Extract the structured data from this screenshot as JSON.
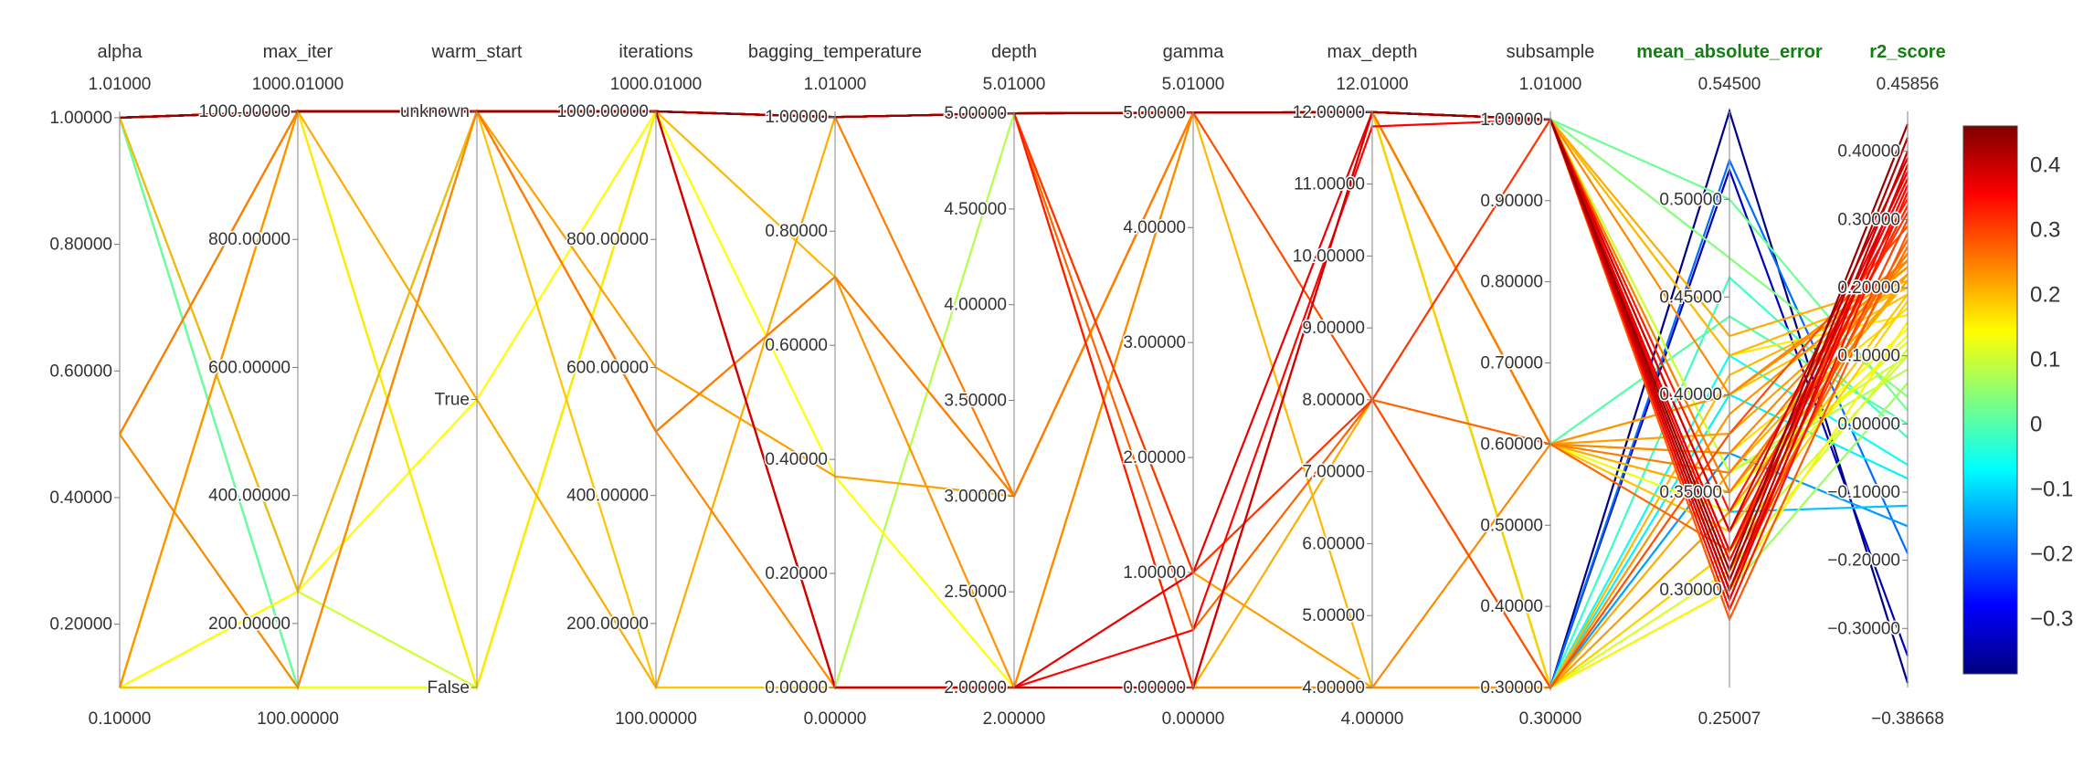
{
  "chart_data": {
    "type": "parallel_coordinates",
    "color_dimension": "r2_score",
    "colorscale": [
      "#00007f",
      "#0000ff",
      "#007fff",
      "#00ffff",
      "#7fff7f",
      "#ffff00",
      "#ff7f00",
      "#ff0000",
      "#7f0000"
    ],
    "colorbar": {
      "min": -0.38668,
      "max": 0.45856,
      "tick_values": [
        0.4,
        0.3,
        0.2,
        0.1,
        0,
        -0.1,
        -0.2,
        -0.3
      ],
      "tick_labels": [
        "0.4",
        "0.3",
        "0.2",
        "0.1",
        "0",
        "−0.1",
        "−0.2",
        "−0.3"
      ]
    },
    "axes": [
      {
        "name": "alpha",
        "top_label": "1.01000",
        "bottom_label": "0.10000",
        "min": 0.1,
        "max": 1.01,
        "ticks": [
          0.2,
          0.4,
          0.6,
          0.8,
          1.0
        ],
        "tick_labels": [
          "0.20000",
          "0.40000",
          "0.60000",
          "0.80000",
          "1.00000"
        ],
        "metric": false
      },
      {
        "name": "max_iter",
        "top_label": "1000.01000",
        "bottom_label": "100.00000",
        "min": 100,
        "max": 1000.01,
        "ticks": [
          200,
          400,
          600,
          800,
          1000
        ],
        "tick_labels": [
          "200.00000",
          "400.00000",
          "600.00000",
          "800.00000",
          "1000.00000"
        ],
        "metric": false
      },
      {
        "name": "warm_start",
        "top_label": "",
        "bottom_label": "",
        "categorical": true,
        "categories": [
          "False",
          "True",
          "unknown"
        ],
        "ticks": [
          0,
          1,
          2
        ],
        "tick_labels": [
          "False",
          "True",
          "unknown"
        ],
        "min": 0,
        "max": 2,
        "metric": false
      },
      {
        "name": "iterations",
        "top_label": "1000.01000",
        "bottom_label": "100.00000",
        "min": 100,
        "max": 1000.01,
        "ticks": [
          200,
          400,
          600,
          800,
          1000
        ],
        "tick_labels": [
          "200.00000",
          "400.00000",
          "600.00000",
          "800.00000",
          "1000.00000"
        ],
        "metric": false
      },
      {
        "name": "bagging_temperature",
        "top_label": "1.01000",
        "bottom_label": "0.00000",
        "min": 0,
        "max": 1.01,
        "ticks": [
          0,
          0.2,
          0.4,
          0.6,
          0.8,
          1.0
        ],
        "tick_labels": [
          "0.00000",
          "0.20000",
          "0.40000",
          "0.60000",
          "0.80000",
          "1.00000"
        ],
        "metric": false
      },
      {
        "name": "depth",
        "top_label": "5.01000",
        "bottom_label": "2.00000",
        "min": 2,
        "max": 5.01,
        "ticks": [
          2,
          2.5,
          3,
          3.5,
          4,
          4.5,
          5
        ],
        "tick_labels": [
          "2.00000",
          "2.50000",
          "3.00000",
          "3.50000",
          "4.00000",
          "4.50000",
          "5.00000"
        ],
        "metric": false
      },
      {
        "name": "gamma",
        "top_label": "5.01000",
        "bottom_label": "0.00000",
        "min": 0,
        "max": 5.01,
        "ticks": [
          0,
          1,
          2,
          3,
          4,
          5
        ],
        "tick_labels": [
          "0.00000",
          "1.00000",
          "2.00000",
          "3.00000",
          "4.00000",
          "5.00000"
        ],
        "metric": false
      },
      {
        "name": "max_depth",
        "top_label": "12.01000",
        "bottom_label": "4.00000",
        "min": 4,
        "max": 12.01,
        "ticks": [
          4,
          5,
          6,
          7,
          8,
          9,
          10,
          11,
          12
        ],
        "tick_labels": [
          "4.00000",
          "5.00000",
          "6.00000",
          "7.00000",
          "8.00000",
          "9.00000",
          "10.00000",
          "11.00000",
          "12.00000"
        ],
        "metric": false
      },
      {
        "name": "subsample",
        "top_label": "1.01000",
        "bottom_label": "0.30000",
        "min": 0.3,
        "max": 1.01,
        "ticks": [
          0.3,
          0.4,
          0.5,
          0.6,
          0.7,
          0.8,
          0.9,
          1.0
        ],
        "tick_labels": [
          "0.30000",
          "0.40000",
          "0.50000",
          "0.60000",
          "0.70000",
          "0.80000",
          "0.90000",
          "1.00000"
        ],
        "metric": false
      },
      {
        "name": "mean_absolute_error",
        "top_label": "0.54500",
        "bottom_label": "0.25007",
        "min": 0.25007,
        "max": 0.545,
        "ticks": [
          0.3,
          0.35,
          0.4,
          0.45,
          0.5
        ],
        "tick_labels": [
          "0.30000",
          "0.35000",
          "0.40000",
          "0.45000",
          "0.50000"
        ],
        "metric": true
      },
      {
        "name": "r2_score",
        "top_label": "0.45856",
        "bottom_label": "−0.38668",
        "min": -0.38668,
        "max": 0.45856,
        "ticks": [
          -0.3,
          -0.2,
          -0.1,
          0,
          0.1,
          0.2,
          0.3,
          0.4
        ],
        "tick_labels": [
          "−0.30000",
          "−0.20000",
          "−0.10000",
          "0.00000",
          "0.10000",
          "0.20000",
          "0.30000",
          "0.40000"
        ],
        "metric": true
      }
    ],
    "rows": [
      [
        1.0,
        1000,
        2,
        1000,
        1.0,
        5,
        5,
        12,
        1.0,
        0.31,
        0.44
      ],
      [
        1.0,
        1000,
        2,
        1000,
        1.0,
        5,
        5,
        12,
        1.0,
        0.305,
        0.42
      ],
      [
        1.0,
        1000,
        2,
        1000,
        1.0,
        5,
        5,
        12,
        1.0,
        0.3,
        0.4
      ],
      [
        1.0,
        1000,
        2,
        1000,
        1.0,
        5,
        5,
        12,
        1.0,
        0.295,
        0.38
      ],
      [
        1.0,
        1000,
        2,
        1000,
        1.0,
        5,
        5,
        12,
        1.0,
        0.315,
        0.36
      ],
      [
        1.0,
        1000,
        2,
        1000,
        1.0,
        5,
        5,
        12,
        1.0,
        0.29,
        0.34
      ],
      [
        1.0,
        1000,
        2,
        1000,
        1.0,
        5,
        5,
        12,
        1.0,
        0.32,
        0.32
      ],
      [
        1.0,
        1000,
        2,
        1000,
        1.0,
        5,
        5,
        12,
        1.0,
        0.3,
        0.3
      ],
      [
        1.0,
        1000,
        2,
        1000,
        1.0,
        5,
        5,
        12,
        1.0,
        0.285,
        0.28
      ],
      [
        1.0,
        1000,
        2,
        1000,
        1.0,
        5,
        5,
        12,
        1.0,
        0.31,
        0.26
      ],
      [
        1.0,
        1000,
        2,
        1000,
        0.0,
        2,
        0,
        12,
        1.0,
        0.33,
        0.39
      ],
      [
        1.0,
        1000,
        2,
        1000,
        0.0,
        2,
        1.0,
        12,
        1.0,
        0.32,
        0.37
      ],
      [
        1.0,
        1000,
        2,
        1000,
        0.0,
        2,
        0.5,
        11.8,
        1.0,
        0.3,
        0.35
      ],
      [
        1.0,
        1000,
        2,
        1000,
        1.0,
        3,
        5,
        12,
        1.0,
        0.35,
        0.25
      ],
      [
        1.0,
        1000,
        2,
        1000,
        1.0,
        5,
        0,
        12,
        1.0,
        0.34,
        0.33
      ],
      [
        1.0,
        1000,
        2,
        1000,
        1.0,
        5,
        0,
        8,
        0.3,
        0.36,
        0.21
      ],
      [
        1.0,
        1000,
        2,
        1000,
        1.0,
        5,
        1.0,
        8,
        1.0,
        0.33,
        0.31
      ],
      [
        1.0,
        1000,
        2,
        1000,
        1.0,
        5,
        0.5,
        8,
        0.6,
        0.32,
        0.27
      ],
      [
        1.0,
        1000,
        2,
        1000,
        1.0,
        5,
        5,
        8,
        0.3,
        0.38,
        0.29
      ],
      [
        1.0,
        1000,
        2,
        1000,
        1.0,
        5,
        0,
        4,
        0.6,
        0.37,
        0.24
      ],
      [
        1.0,
        1000,
        2,
        1000,
        1.0,
        5,
        1.0,
        4,
        0.3,
        0.34,
        0.22
      ],
      [
        1.0,
        1000,
        2,
        1000,
        1.0,
        5,
        5,
        4,
        0.3,
        0.41,
        0.2
      ],
      [
        0.5,
        1000,
        2,
        500,
        0.72,
        3,
        5,
        12,
        0.6,
        0.36,
        0.25
      ],
      [
        0.5,
        100,
        2,
        500,
        0.0,
        2,
        5,
        12,
        1.0,
        0.4,
        0.24
      ],
      [
        0.5,
        1000,
        2,
        600,
        0.37,
        3,
        5,
        12,
        0.6,
        0.38,
        0.22
      ],
      [
        0.1,
        1000,
        2,
        500,
        0.72,
        2,
        0,
        4,
        0.3,
        0.39,
        0.23
      ],
      [
        0.1,
        1000,
        1,
        100,
        1.0,
        5,
        5,
        12,
        1.0,
        0.43,
        0.21
      ],
      [
        1.0,
        250,
        2,
        1000,
        0.72,
        3,
        5,
        12,
        1.0,
        0.42,
        0.2
      ],
      [
        0.1,
        100,
        2,
        100,
        0.0,
        2,
        5,
        12,
        0.6,
        0.4,
        0.19
      ],
      [
        0.1,
        100,
        0,
        1000,
        1.0,
        5,
        5,
        12,
        1.0,
        0.36,
        0.1
      ],
      [
        0.1,
        1000,
        0,
        1000,
        1.0,
        5,
        5,
        12,
        1.0,
        0.35,
        0.12
      ],
      [
        0.1,
        250,
        1,
        1000,
        0.37,
        2,
        5,
        12,
        0.6,
        0.35,
        0.14
      ],
      [
        0.1,
        100,
        0,
        1000,
        0.0,
        5,
        5,
        12,
        1.0,
        0.36,
        0.08
      ],
      [
        0.1,
        1000,
        0,
        1000,
        1.0,
        5,
        5,
        12,
        1.0,
        0.42,
        0.16
      ],
      [
        0.1,
        250,
        0,
        1000,
        1.0,
        5,
        5,
        12,
        0.3,
        0.32,
        0.1
      ],
      [
        0.1,
        100,
        0,
        1000,
        1.0,
        5,
        5,
        12,
        0.6,
        0.34,
        0.13
      ],
      [
        0.1,
        1000,
        0,
        1000,
        1.0,
        5,
        5,
        12,
        0.3,
        0.31,
        0.11
      ],
      [
        1.0,
        1000,
        2,
        1000,
        1.0,
        5,
        5,
        12,
        0.3,
        0.3,
        0.06
      ],
      [
        1.0,
        100,
        2,
        1000,
        1.0,
        5,
        5,
        12,
        1.0,
        0.5,
        0.02
      ],
      [
        1.0,
        250,
        2,
        1000,
        1.0,
        5,
        5,
        12,
        0.3,
        0.46,
        -0.02
      ],
      [
        0.5,
        1000,
        2,
        1000,
        1.0,
        5,
        5,
        12,
        0.6,
        0.44,
        0.0
      ],
      [
        0.5,
        100,
        2,
        1000,
        1.0,
        5,
        5,
        12,
        1.0,
        0.47,
        0.04
      ],
      [
        1.0,
        1000,
        2,
        1000,
        1.0,
        5,
        5,
        12,
        0.3,
        0.42,
        -0.06
      ],
      [
        1.0,
        250,
        2,
        1000,
        1.0,
        5,
        5,
        12,
        0.3,
        0.4,
        -0.08
      ],
      [
        1.0,
        100,
        2,
        1000,
        1.0,
        5,
        5,
        12,
        0.3,
        0.34,
        -0.12
      ],
      [
        1.0,
        1000,
        2,
        1000,
        1.0,
        5,
        5,
        12,
        0.3,
        0.37,
        -0.15
      ],
      [
        1.0,
        1000,
        2,
        1000,
        1.0,
        5,
        5,
        12,
        0.3,
        0.52,
        -0.19
      ],
      [
        1.0,
        1000,
        2,
        1000,
        1.0,
        5,
        5,
        12,
        0.3,
        0.545,
        -0.38
      ],
      [
        1.0,
        1000,
        2,
        1000,
        1.0,
        5,
        5,
        12,
        0.3,
        0.515,
        -0.34
      ],
      [
        1.0,
        1000,
        2,
        1000,
        1.0,
        5,
        5,
        12,
        0.6,
        0.4,
        0.23
      ],
      [
        1.0,
        1000,
        2,
        1000,
        1.0,
        5,
        5,
        12,
        0.6,
        0.35,
        0.21
      ],
      [
        1.0,
        1000,
        2,
        1000,
        1.0,
        5,
        5,
        12,
        0.6,
        0.33,
        0.19
      ],
      [
        1.0,
        1000,
        2,
        1000,
        1.0,
        5,
        5,
        12,
        0.6,
        0.37,
        0.17
      ],
      [
        1.0,
        1000,
        2,
        1000,
        1.0,
        5,
        5,
        12,
        0.3,
        0.3,
        0.15
      ],
      [
        1.0,
        1000,
        2,
        1000,
        1.0,
        5,
        5,
        12,
        0.3,
        0.32,
        0.18
      ]
    ]
  }
}
